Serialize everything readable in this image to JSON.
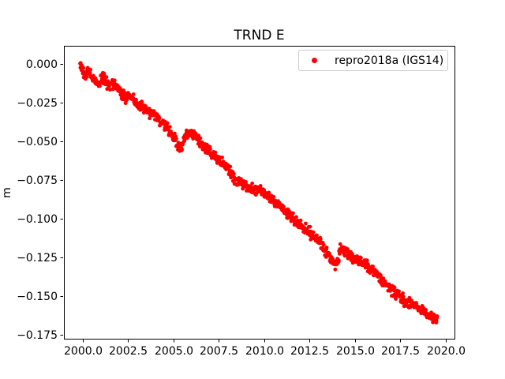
{
  "figure": {
    "background": "#ffffff"
  },
  "chart_data": {
    "type": "scatter",
    "title": "TRND E",
    "xlabel": "",
    "ylabel": "m",
    "xlim": [
      1998.96,
      2020.48
    ],
    "ylim": [
      -0.1776,
      0.0117
    ],
    "grid": false,
    "axis_color": "#000000",
    "x_ticks": [
      {
        "value": 2000.0,
        "label": "2000.0"
      },
      {
        "value": 2002.5,
        "label": "2002.5"
      },
      {
        "value": 2005.0,
        "label": "2005.0"
      },
      {
        "value": 2007.5,
        "label": "2007.5"
      },
      {
        "value": 2010.0,
        "label": "2010.0"
      },
      {
        "value": 2012.5,
        "label": "2012.5"
      },
      {
        "value": 2015.0,
        "label": "2015.0"
      },
      {
        "value": 2017.5,
        "label": "2017.5"
      },
      {
        "value": 2020.0,
        "label": "2020.0"
      }
    ],
    "y_ticks": [
      {
        "value": 0.0,
        "label": "0.000"
      },
      {
        "value": -0.025,
        "label": "−0.025"
      },
      {
        "value": -0.05,
        "label": "−0.050"
      },
      {
        "value": -0.075,
        "label": "−0.075"
      },
      {
        "value": -0.1,
        "label": "−0.100"
      },
      {
        "value": -0.125,
        "label": "−0.125"
      },
      {
        "value": -0.15,
        "label": "−0.150"
      },
      {
        "value": -0.175,
        "label": "−0.175"
      }
    ],
    "legend": {
      "position": "upper right",
      "entries": [
        {
          "label": "repro2018a (IGS14)",
          "color": "#ff0000",
          "marker": "dot"
        }
      ]
    },
    "series": [
      {
        "name": "repro2018a (IGS14)",
        "color": "#ff0000",
        "marker": "dot",
        "marker_radius_px": 2.4,
        "noise_amplitude": 0.0042,
        "sample_step": 0.02,
        "anchors": [
          [
            1999.85,
            -0.001
          ],
          [
            2000.0,
            -0.003
          ],
          [
            2000.15,
            -0.007
          ],
          [
            2000.3,
            -0.005
          ],
          [
            2000.5,
            -0.009
          ],
          [
            2000.7,
            -0.011
          ],
          [
            2000.9,
            -0.013
          ],
          [
            2001.05,
            -0.008
          ],
          [
            2001.2,
            -0.01
          ],
          [
            2001.4,
            -0.014
          ],
          [
            2001.6,
            -0.012
          ],
          [
            2001.8,
            -0.015
          ],
          [
            2002.0,
            -0.017
          ],
          [
            2002.2,
            -0.02
          ],
          [
            2002.4,
            -0.022
          ],
          [
            2002.6,
            -0.021
          ],
          [
            2002.8,
            -0.023
          ],
          [
            2003.0,
            -0.026
          ],
          [
            2003.2,
            -0.028
          ],
          [
            2003.5,
            -0.03
          ],
          [
            2003.8,
            -0.032
          ],
          [
            2004.1,
            -0.035
          ],
          [
            2004.4,
            -0.038
          ],
          [
            2004.7,
            -0.042
          ],
          [
            2005.0,
            -0.047
          ],
          [
            2005.2,
            -0.052
          ],
          [
            2005.4,
            -0.056
          ],
          [
            2005.55,
            -0.049
          ],
          [
            2005.7,
            -0.046
          ],
          [
            2005.9,
            -0.045
          ],
          [
            2006.1,
            -0.046
          ],
          [
            2006.3,
            -0.049
          ],
          [
            2006.5,
            -0.052
          ],
          [
            2006.8,
            -0.055
          ],
          [
            2007.1,
            -0.058
          ],
          [
            2007.4,
            -0.061
          ],
          [
            2007.7,
            -0.064
          ],
          [
            2008.0,
            -0.068
          ],
          [
            2008.3,
            -0.073
          ],
          [
            2008.6,
            -0.076
          ],
          [
            2008.9,
            -0.078
          ],
          [
            2009.2,
            -0.08
          ],
          [
            2009.5,
            -0.081
          ],
          [
            2009.8,
            -0.082
          ],
          [
            2010.1,
            -0.084
          ],
          [
            2010.4,
            -0.087
          ],
          [
            2010.7,
            -0.09
          ],
          [
            2011.0,
            -0.093
          ],
          [
            2011.3,
            -0.097
          ],
          [
            2011.6,
            -0.1
          ],
          [
            2011.9,
            -0.103
          ],
          [
            2012.2,
            -0.106
          ],
          [
            2012.5,
            -0.109
          ],
          [
            2012.8,
            -0.113
          ],
          [
            2013.1,
            -0.116
          ],
          [
            2013.4,
            -0.121
          ],
          [
            2013.7,
            -0.127
          ],
          [
            2013.9,
            -0.131
          ],
          [
            2014.05,
            -0.128
          ],
          [
            2014.2,
            -0.119
          ],
          [
            2014.35,
            -0.12
          ],
          [
            2014.6,
            -0.122
          ],
          [
            2014.9,
            -0.125
          ],
          [
            2015.2,
            -0.127
          ],
          [
            2015.5,
            -0.129
          ],
          [
            2015.8,
            -0.132
          ],
          [
            2016.1,
            -0.135
          ],
          [
            2016.4,
            -0.139
          ],
          [
            2016.7,
            -0.142
          ],
          [
            2017.0,
            -0.146
          ],
          [
            2017.3,
            -0.149
          ],
          [
            2017.6,
            -0.152
          ],
          [
            2017.9,
            -0.154
          ],
          [
            2018.2,
            -0.156
          ],
          [
            2018.5,
            -0.158
          ],
          [
            2018.8,
            -0.161
          ],
          [
            2019.1,
            -0.163
          ],
          [
            2019.35,
            -0.165
          ],
          [
            2019.55,
            -0.166
          ]
        ],
        "outliers": [
          [
            2000.05,
            -0.0087
          ]
        ]
      }
    ]
  }
}
